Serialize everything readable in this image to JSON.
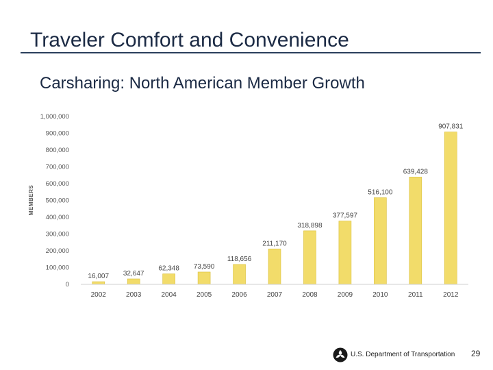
{
  "slide": {
    "title": "Traveler Comfort and Convenience",
    "footer": "U.S. Department of Transportation",
    "page_number": "29",
    "logo_icon": "dot-tri-star-icon"
  },
  "chart_data": {
    "type": "bar",
    "title": "Carsharing: North American Member Growth",
    "xlabel": "",
    "ylabel": "MEMBERS",
    "categories": [
      "2002",
      "2003",
      "2004",
      "2005",
      "2006",
      "2007",
      "2008",
      "2009",
      "2010",
      "2011",
      "2012"
    ],
    "values": [
      16007,
      32647,
      62348,
      73590,
      118656,
      211170,
      318898,
      377597,
      516100,
      639428,
      907831
    ],
    "data_labels": [
      "16,007",
      "32,647",
      "62,348",
      "73,590",
      "118,656",
      "211,170",
      "318,898",
      "377,597",
      "516,100",
      "639,428",
      "907,831"
    ],
    "ylim": [
      0,
      1000000
    ],
    "y_ticks": [
      0,
      100000,
      200000,
      300000,
      400000,
      500000,
      600000,
      700000,
      800000,
      900000,
      1000000
    ],
    "y_tick_labels": [
      "0",
      "100,000",
      "200,000",
      "300,000",
      "400,000",
      "500,000",
      "600,000",
      "700,000",
      "800,000",
      "900,000",
      "1,000,000"
    ],
    "grid": false,
    "bar_color": "#f2dc6a",
    "bar_edge_color": "#d9bf3a"
  }
}
